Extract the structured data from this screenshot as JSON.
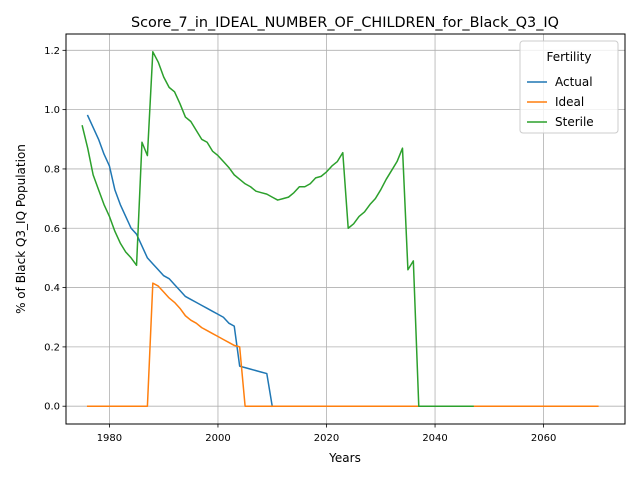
{
  "chart_data": {
    "type": "line",
    "title": "Score_7_in_IDEAL_NUMBER_OF_CHILDREN_for_Black_Q3_IQ",
    "xlabel": "Years",
    "ylabel": "% of Black Q3_IQ Population",
    "xlim": [
      1972,
      2075
    ],
    "ylim": [
      -0.06,
      1.255
    ],
    "xticks": [
      1980,
      2000,
      2020,
      2040,
      2060
    ],
    "yticks": [
      0.0,
      0.2,
      0.4,
      0.6,
      0.8,
      1.0,
      1.2
    ],
    "xtick_labels": [
      "1980",
      "2000",
      "2020",
      "2040",
      "2060"
    ],
    "ytick_labels": [
      "0.0",
      "0.2",
      "0.4",
      "0.6",
      "0.8",
      "1.0",
      "1.2"
    ],
    "grid": true,
    "legend": {
      "title": "Fertility",
      "placement": "top-right"
    },
    "series": [
      {
        "name": "Actual",
        "color": "#1f77b4",
        "x": [
          1976,
          1977,
          1978,
          1979,
          1980,
          1981,
          1982,
          1983,
          1984,
          1985,
          1986,
          1987,
          1988,
          1989,
          1990,
          1991,
          1992,
          1993,
          1994,
          1995,
          1996,
          1997,
          1998,
          1999,
          2000,
          2001,
          2002,
          2003,
          2004,
          2005,
          2006,
          2007,
          2008,
          2009,
          2010
        ],
        "y": [
          0.98,
          0.94,
          0.9,
          0.85,
          0.81,
          0.73,
          0.68,
          0.64,
          0.6,
          0.58,
          0.54,
          0.5,
          0.48,
          0.46,
          0.44,
          0.43,
          0.41,
          0.39,
          0.37,
          0.36,
          0.35,
          0.34,
          0.33,
          0.32,
          0.31,
          0.3,
          0.28,
          0.27,
          0.135,
          0.13,
          0.125,
          0.12,
          0.115,
          0.11,
          0.0
        ]
      },
      {
        "name": "Ideal",
        "color": "#ff7f0e",
        "x": [
          1976,
          1987,
          1988,
          1989,
          1990,
          1991,
          1992,
          1993,
          1994,
          1995,
          1996,
          1997,
          1998,
          1999,
          2000,
          2001,
          2002,
          2003,
          2004,
          2005,
          2070
        ],
        "y": [
          0.0,
          0.0,
          0.415,
          0.405,
          0.385,
          0.365,
          0.35,
          0.33,
          0.305,
          0.29,
          0.28,
          0.265,
          0.255,
          0.245,
          0.235,
          0.225,
          0.215,
          0.205,
          0.2,
          0.0,
          0.0
        ]
      },
      {
        "name": "Sterile",
        "color": "#2ca02c",
        "x": [
          1975,
          1976,
          1977,
          1978,
          1979,
          1980,
          1981,
          1982,
          1983,
          1984,
          1985,
          1986,
          1987,
          1988,
          1989,
          1990,
          1991,
          1992,
          1993,
          1994,
          1995,
          1996,
          1997,
          1998,
          1999,
          2000,
          2001,
          2002,
          2003,
          2004,
          2005,
          2006,
          2007,
          2008,
          2009,
          2010,
          2011,
          2012,
          2013,
          2014,
          2015,
          2016,
          2017,
          2018,
          2019,
          2020,
          2021,
          2022,
          2023,
          2024,
          2025,
          2026,
          2027,
          2028,
          2029,
          2030,
          2031,
          2032,
          2033,
          2034,
          2035,
          2036,
          2037,
          2047
        ],
        "y": [
          0.945,
          0.87,
          0.78,
          0.73,
          0.68,
          0.64,
          0.59,
          0.55,
          0.52,
          0.5,
          0.475,
          0.89,
          0.845,
          1.195,
          1.16,
          1.11,
          1.075,
          1.06,
          1.02,
          0.975,
          0.96,
          0.93,
          0.9,
          0.89,
          0.86,
          0.845,
          0.825,
          0.805,
          0.78,
          0.765,
          0.75,
          0.74,
          0.725,
          0.72,
          0.715,
          0.705,
          0.695,
          0.7,
          0.705,
          0.72,
          0.74,
          0.74,
          0.75,
          0.77,
          0.775,
          0.79,
          0.81,
          0.825,
          0.855,
          0.6,
          0.615,
          0.64,
          0.655,
          0.68,
          0.7,
          0.73,
          0.765,
          0.795,
          0.825,
          0.87,
          0.46,
          0.49,
          0.0,
          0.0
        ]
      }
    ]
  }
}
